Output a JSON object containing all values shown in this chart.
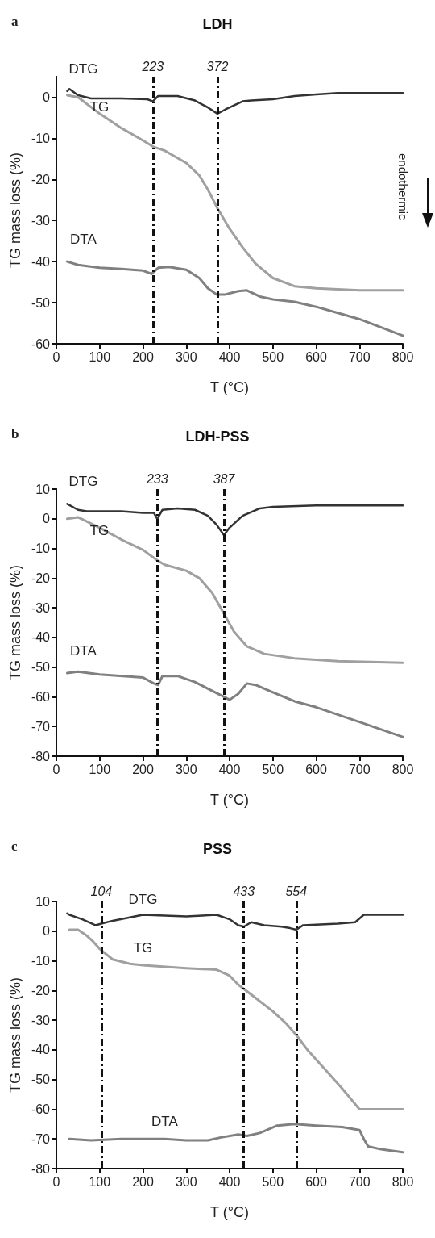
{
  "chart_data": [
    {
      "type": "line",
      "title": "LDH",
      "xlabel": "T (°C)",
      "ylabel": "TG mass loss (%)",
      "annotations": [
        "a",
        "endothermic"
      ],
      "xlim": [
        0,
        800
      ],
      "xticks": [
        0,
        100,
        200,
        300,
        400,
        500,
        600,
        700,
        800
      ],
      "ylim": [
        -60,
        5
      ],
      "yticks": [
        -60,
        -50,
        -40,
        -30,
        -20,
        -10,
        0
      ],
      "grid": false,
      "legend": false,
      "marker": "none",
      "line_style": "solid",
      "ref_lines": [
        {
          "axis": "x",
          "value": 223,
          "label": "223"
        },
        {
          "axis": "x",
          "value": 372,
          "label": "372"
        }
      ],
      "series": [
        {
          "name": "DTG",
          "color": "#333333",
          "x": [
            25,
            30,
            50,
            80,
            150,
            210,
            223,
            235,
            280,
            320,
            350,
            372,
            390,
            410,
            430,
            450,
            500,
            550,
            600,
            650,
            700,
            750,
            800
          ],
          "values": [
            1.5,
            2,
            0.5,
            -0.3,
            -0.3,
            -0.5,
            -1,
            0.3,
            0.3,
            -0.8,
            -2.5,
            -4,
            -3,
            -2,
            -1,
            -0.8,
            -0.5,
            0.3,
            0.7,
            1,
            1,
            1,
            1
          ]
        },
        {
          "name": "TG",
          "color": "#a0a0a0",
          "x": [
            25,
            50,
            100,
            150,
            200,
            223,
            250,
            300,
            330,
            350,
            372,
            400,
            430,
            460,
            500,
            550,
            600,
            700,
            800
          ],
          "values": [
            0.5,
            0,
            -4,
            -7.5,
            -10.5,
            -12,
            -13,
            -16,
            -19,
            -22.5,
            -27,
            -32,
            -36.5,
            -40.5,
            -44,
            -46,
            -46.5,
            -47,
            -47
          ]
        },
        {
          "name": "DTA",
          "color": "#808080",
          "x": [
            25,
            50,
            100,
            150,
            200,
            220,
            235,
            260,
            300,
            330,
            350,
            370,
            390,
            420,
            440,
            470,
            500,
            550,
            600,
            650,
            700,
            750,
            800
          ],
          "values": [
            -40,
            -40.8,
            -41.5,
            -41.8,
            -42.2,
            -43,
            -41.5,
            -41.3,
            -42,
            -44,
            -46.5,
            -48,
            -48,
            -47.2,
            -47,
            -48.5,
            -49.2,
            -49.8,
            -51,
            -52.5,
            -54,
            -56,
            -58
          ]
        }
      ]
    },
    {
      "type": "line",
      "title": "LDH-PSS",
      "xlabel": "T (°C)",
      "ylabel": "TG mass loss (%)",
      "annotations": [
        "b"
      ],
      "xlim": [
        0,
        800
      ],
      "xticks": [
        0,
        100,
        200,
        300,
        400,
        500,
        600,
        700,
        800
      ],
      "ylim": [
        -80,
        10
      ],
      "yticks": [
        -80,
        -70,
        -60,
        -50,
        -40,
        -30,
        -20,
        -10,
        0,
        10
      ],
      "grid": false,
      "legend": false,
      "marker": "none",
      "line_style": "solid",
      "ref_lines": [
        {
          "axis": "x",
          "value": 233,
          "label": "233"
        },
        {
          "axis": "x",
          "value": 387,
          "label": "387"
        }
      ],
      "series": [
        {
          "name": "DTG",
          "color": "#333333",
          "x": [
            25,
            50,
            70,
            150,
            200,
            225,
            233,
            245,
            280,
            320,
            350,
            370,
            387,
            400,
            430,
            470,
            500,
            600,
            700,
            800
          ],
          "values": [
            5,
            3,
            2.5,
            2.5,
            2,
            2,
            0,
            3,
            3.5,
            3,
            1,
            -2,
            -5.5,
            -3,
            1,
            3.5,
            4,
            4.5,
            4.5,
            4.5
          ]
        },
        {
          "name": "TG",
          "color": "#a0a0a0",
          "x": [
            25,
            50,
            100,
            150,
            200,
            233,
            250,
            300,
            330,
            360,
            387,
            410,
            440,
            480,
            550,
            650,
            800
          ],
          "values": [
            0,
            0.5,
            -3,
            -7,
            -10.5,
            -14,
            -15.5,
            -17.5,
            -20,
            -25,
            -32,
            -38,
            -43,
            -45.5,
            -47,
            -48,
            -48.5
          ]
        },
        {
          "name": "DTA",
          "color": "#808080",
          "x": [
            25,
            50,
            100,
            200,
            225,
            235,
            245,
            280,
            320,
            360,
            387,
            400,
            420,
            440,
            460,
            500,
            550,
            600,
            700,
            800
          ],
          "values": [
            -52,
            -51.5,
            -52.5,
            -53.5,
            -55.5,
            -56,
            -53,
            -53,
            -55,
            -58,
            -60,
            -61,
            -59,
            -55.5,
            -56,
            -58.5,
            -61.5,
            -63.5,
            -68.5,
            -73.5
          ]
        }
      ]
    },
    {
      "type": "line",
      "title": "PSS",
      "xlabel": "T (°C)",
      "ylabel": "TG mass loss (%)",
      "annotations": [
        "c"
      ],
      "xlim": [
        0,
        800
      ],
      "xticks": [
        0,
        100,
        200,
        300,
        400,
        500,
        600,
        700,
        800
      ],
      "ylim": [
        -80,
        10
      ],
      "yticks": [
        -80,
        -70,
        -60,
        -50,
        -40,
        -30,
        -20,
        -10,
        0,
        10
      ],
      "grid": false,
      "legend": false,
      "marker": "none",
      "line_style": "solid",
      "ref_lines": [
        {
          "axis": "x",
          "value": 104,
          "label": "104"
        },
        {
          "axis": "x",
          "value": 433,
          "label": "433"
        },
        {
          "axis": "x",
          "value": 554,
          "label": "554"
        }
      ],
      "series": [
        {
          "name": "DTG",
          "color": "#333333",
          "x": [
            25,
            30,
            60,
            90,
            104,
            130,
            200,
            300,
            370,
            400,
            420,
            433,
            450,
            480,
            520,
            540,
            554,
            570,
            650,
            690,
            710,
            800
          ],
          "values": [
            6,
            5.5,
            4,
            2,
            2.5,
            3.5,
            5.5,
            5,
            5.5,
            4,
            2,
            1.5,
            3,
            2,
            1.5,
            1,
            0.5,
            2,
            2.5,
            3,
            5.5,
            5.5
          ]
        },
        {
          "name": "TG",
          "color": "#a0a0a0",
          "x": [
            30,
            50,
            70,
            85,
            100,
            130,
            170,
            200,
            300,
            370,
            400,
            420,
            460,
            500,
            530,
            554,
            580,
            620,
            660,
            700,
            750,
            800
          ],
          "values": [
            0.5,
            0.5,
            -1.5,
            -3.5,
            -6,
            -9.5,
            -11,
            -11.5,
            -12.5,
            -13,
            -15,
            -18,
            -22.5,
            -27,
            -31,
            -35,
            -40,
            -46.5,
            -53,
            -60,
            -60,
            -60
          ]
        },
        {
          "name": "DTA",
          "color": "#808080",
          "x": [
            30,
            80,
            150,
            250,
            300,
            350,
            380,
            420,
            440,
            470,
            510,
            550,
            600,
            660,
            700,
            710,
            720,
            750,
            800
          ],
          "values": [
            -70,
            -70.5,
            -70,
            -70,
            -70.5,
            -70.5,
            -69.5,
            -68.5,
            -69,
            -68,
            -65.5,
            -65,
            -65.5,
            -66,
            -67,
            -70,
            -72.5,
            -73.5,
            -74.5
          ]
        }
      ]
    }
  ]
}
